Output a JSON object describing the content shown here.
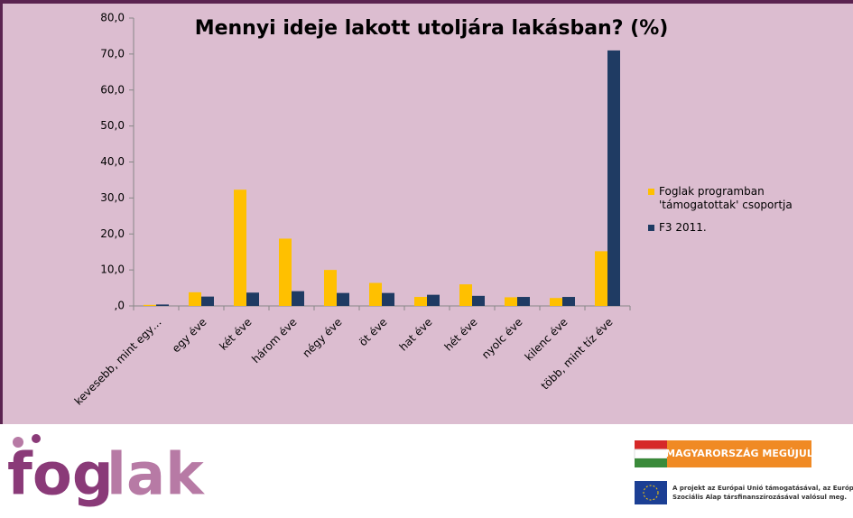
{
  "chart_data": {
    "type": "bar",
    "title": "Mennyi ideje lakott utoljára lakásban? (%)",
    "categories": [
      "kevesebb, mint egy…",
      "egy éve",
      "két éve",
      "három éve",
      "négy éve",
      "öt éve",
      "hat éve",
      "hét éve",
      "nyolc éve",
      "kilenc éve",
      "több, mint tíz éve"
    ],
    "series": [
      {
        "name": "Foglak programban 'támogatottak' csoportja",
        "color": "#ffc000",
        "values": [
          0.3,
          3.8,
          32.3,
          18.7,
          10.0,
          6.4,
          2.5,
          6.0,
          2.4,
          2.2,
          15.2
        ]
      },
      {
        "name": "F3 2011.",
        "color": "#1f3b63",
        "values": [
          0.4,
          2.6,
          3.7,
          4.1,
          3.6,
          3.6,
          3.1,
          2.8,
          2.5,
          2.5,
          71.0
        ]
      }
    ],
    "ylim": [
      0,
      80
    ],
    "yticks": [
      {
        "value": 0,
        "label": ",0"
      },
      {
        "value": 10,
        "label": "10,0"
      },
      {
        "value": 20,
        "label": "20,0"
      },
      {
        "value": 30,
        "label": "30,0"
      },
      {
        "value": 40,
        "label": "40,0"
      },
      {
        "value": 50,
        "label": "50,0"
      },
      {
        "value": 60,
        "label": "60,0"
      },
      {
        "value": 70,
        "label": "70,0"
      },
      {
        "value": 80,
        "label": "80,0"
      }
    ],
    "grid": false,
    "legend": "right"
  },
  "footer": {
    "logo_fog": "fog",
    "logo_lak": "lak",
    "banner": "MAGYARORSZÁG MEGÚJUL",
    "eu_line1": "A projekt az Európai Unió támogatásával, az Európ",
    "eu_line2": "Szociális Alap társfinanszírozásával valósul meg."
  }
}
